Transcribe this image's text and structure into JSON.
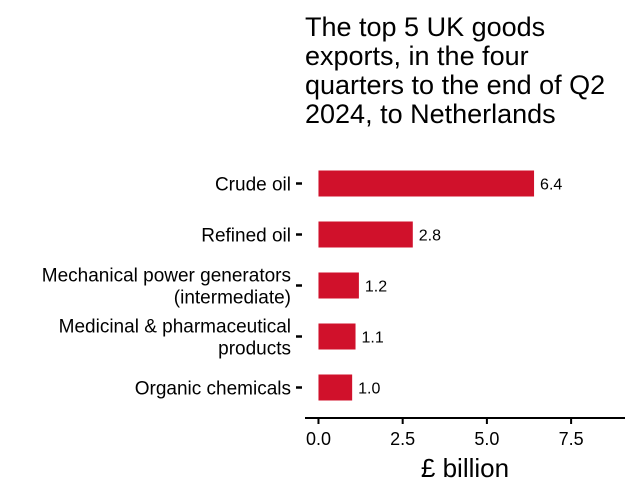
{
  "chart_data": {
    "type": "bar",
    "orientation": "horizontal",
    "title_lines": [
      "The top 5 UK goods",
      "exports, in the four",
      "quarters to the end of Q2",
      "2024, to Netherlands"
    ],
    "categories": [
      [
        "Crude oil"
      ],
      [
        "Refined oil"
      ],
      [
        "Mechanical power generators",
        "(intermediate)"
      ],
      [
        "Medicinal & pharmaceutical",
        "products"
      ],
      [
        "Organic chemicals"
      ]
    ],
    "values": [
      6.4,
      2.8,
      1.2,
      1.1,
      1.0
    ],
    "value_labels": [
      "6.4",
      "2.8",
      "1.2",
      "1.1",
      "1.0"
    ],
    "xlabel": "£ billion",
    "xlim": [
      -0.4,
      9.1
    ],
    "x_ticks": [
      0,
      2.5,
      5,
      7.5
    ],
    "x_tick_labels": [
      "0.0",
      "2.5",
      "5.0",
      "7.5"
    ],
    "bar_color": "#d0112b",
    "grid": false,
    "legend": "none"
  }
}
